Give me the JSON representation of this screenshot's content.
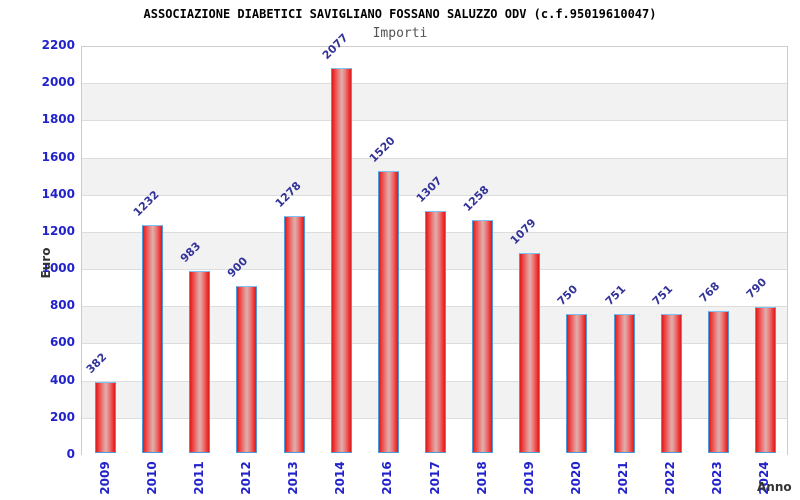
{
  "chart_data": {
    "type": "bar",
    "title": "ASSOCIAZIONE DIABETICI SAVIGLIANO FOSSANO SALUZZO ODV (c.f.95019610047)",
    "subtitle": "Importi",
    "ylabel": "Euro",
    "xlabel": "Anno",
    "categories": [
      "2009",
      "2010",
      "2011",
      "2012",
      "2013",
      "2014",
      "2016",
      "2017",
      "2018",
      "2019",
      "2020",
      "2021",
      "2022",
      "2023",
      "2024"
    ],
    "values": [
      382,
      1232,
      983,
      900,
      1278,
      2077,
      1520,
      1307,
      1258,
      1079,
      750,
      751,
      751,
      768,
      790
    ],
    "ylim": [
      0,
      2200
    ],
    "ytick_interval": 200,
    "legend": "none",
    "grid": "horizontal-bands-alternating",
    "colors": {
      "bar_edge_red": "#d91c1c",
      "bar_bright_red": "#ee3333",
      "bar_center_pale": "#dfb0ac",
      "bar_border_blue": "#4d9bd9",
      "axis_tick_label_blue": "#2222cc",
      "value_label_blue": "#333399",
      "band_gray": "#f2f2f2",
      "grid_line": "#dddddd",
      "plot_border": "#cccccc",
      "title_black": "#000000",
      "subtitle_gray": "#555555",
      "axis_title_gray": "#333333"
    }
  }
}
